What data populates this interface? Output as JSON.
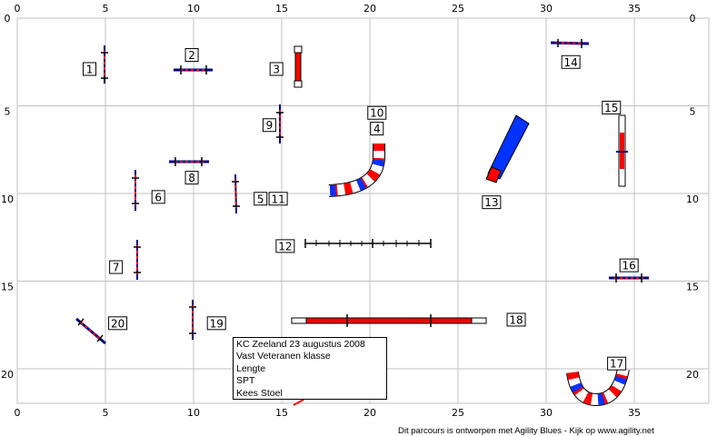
{
  "course": {
    "x_axis": {
      "min": 0,
      "max": 38,
      "ticks": [
        "0",
        "5",
        "10",
        "15",
        "20",
        "25",
        "30",
        "35"
      ]
    },
    "y_axis": {
      "min": 0,
      "max": 22,
      "ticks": [
        "0",
        "5",
        "10",
        "15",
        "20"
      ]
    },
    "grid": true,
    "number_labels": [
      {
        "text": "1",
        "x": 4.1,
        "y": 2.9
      },
      {
        "text": "2",
        "x": 9.9,
        "y": 2.1
      },
      {
        "text": "3",
        "x": 14.7,
        "y": 2.9
      },
      {
        "text": "14",
        "x": 31.4,
        "y": 2.5
      },
      {
        "text": "10",
        "x": 20.4,
        "y": 5.4
      },
      {
        "text": "4",
        "x": 20.4,
        "y": 6.3
      },
      {
        "text": "15",
        "x": 33.7,
        "y": 5.1
      },
      {
        "text": "9",
        "x": 14.3,
        "y": 6.1
      },
      {
        "text": "8",
        "x": 9.9,
        "y": 9.1
      },
      {
        "text": "6",
        "x": 8.0,
        "y": 10.2
      },
      {
        "text": "5",
        "x": 13.8,
        "y": 10.3
      },
      {
        "text": "11",
        "x": 14.8,
        "y": 10.3
      },
      {
        "text": "13",
        "x": 26.9,
        "y": 10.5
      },
      {
        "text": "12",
        "x": 15.2,
        "y": 13.0
      },
      {
        "text": "16",
        "x": 34.7,
        "y": 14.1
      },
      {
        "text": "7",
        "x": 5.6,
        "y": 14.2
      },
      {
        "text": "18",
        "x": 28.3,
        "y": 17.2
      },
      {
        "text": "20",
        "x": 5.7,
        "y": 17.4
      },
      {
        "text": "19",
        "x": 11.3,
        "y": 17.4
      },
      {
        "text": "17",
        "x": 34.0,
        "y": 19.7
      }
    ],
    "colors": {
      "red": "#ff0000",
      "blue": "#0033ff",
      "navy": "#000080",
      "grid": "#c0c0c0"
    }
  },
  "info": {
    "lines": [
      "KC Zeeland 23 augustus 2008",
      "Vast Veteranen klasse",
      "Lengte",
      "SPT",
      "Kees Stoel"
    ]
  },
  "footer": "Dit parcours is ontworpen met Agility Blues - Kijk op www.agility.net"
}
